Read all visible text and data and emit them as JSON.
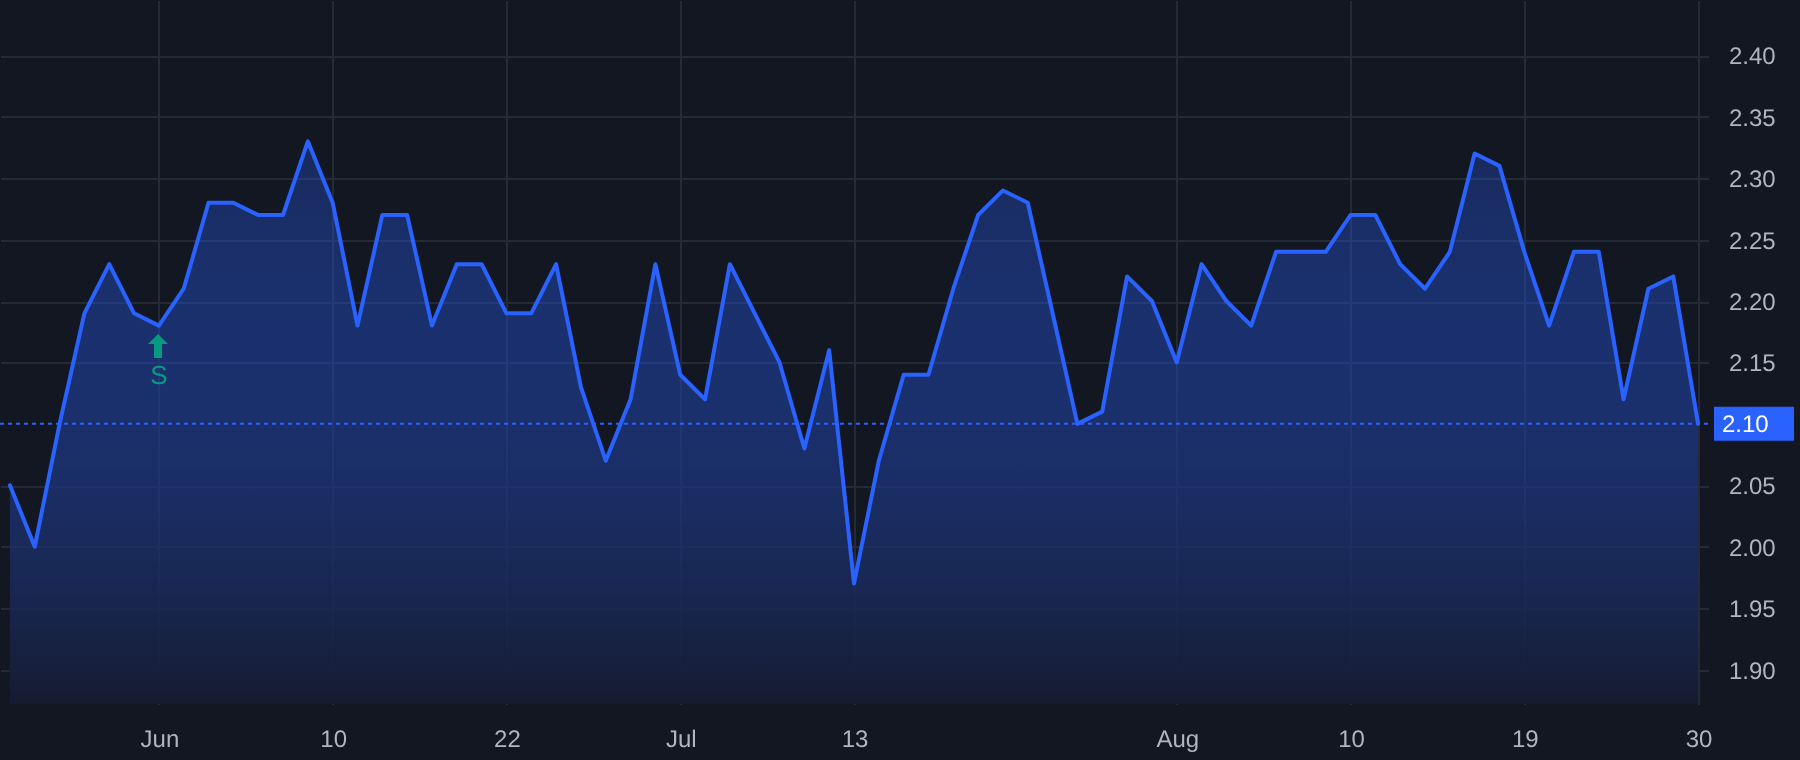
{
  "chart_data": {
    "type": "area",
    "categories": [
      null,
      null,
      null,
      null,
      null,
      null,
      "Jun",
      null,
      null,
      null,
      null,
      null,
      null,
      "10",
      null,
      null,
      null,
      null,
      null,
      null,
      "22",
      null,
      null,
      null,
      null,
      null,
      null,
      "Jul",
      null,
      null,
      null,
      null,
      null,
      null,
      "13",
      null,
      null,
      null,
      null,
      null,
      null,
      null,
      null,
      null,
      null,
      null,
      null,
      "Aug",
      null,
      null,
      null,
      null,
      null,
      null,
      "10",
      null,
      null,
      null,
      null,
      null,
      null,
      "19",
      null,
      null,
      null,
      null,
      null,
      null,
      "30"
    ],
    "series": [
      {
        "color": "#2962ff",
        "values": [
          2.05,
          2.0,
          2.1,
          2.19,
          2.23,
          2.19,
          2.18,
          2.21,
          2.28,
          2.28,
          2.27,
          2.27,
          2.33,
          2.28,
          2.18,
          2.27,
          2.27,
          2.18,
          2.23,
          2.23,
          2.19,
          2.19,
          2.23,
          2.13,
          2.07,
          2.12,
          2.23,
          2.14,
          2.12,
          2.23,
          2.19,
          2.15,
          2.08,
          2.16,
          1.97,
          2.07,
          2.14,
          2.14,
          2.21,
          2.27,
          2.29,
          2.28,
          2.19,
          2.1,
          2.11,
          2.22,
          2.2,
          2.15,
          2.23,
          2.2,
          2.18,
          2.24,
          2.24,
          2.24,
          2.27,
          2.27,
          2.23,
          2.21,
          2.24,
          2.32,
          2.31,
          2.24,
          2.18,
          2.24,
          2.24,
          2.12,
          2.21,
          2.22,
          2.1
        ]
      }
    ],
    "ylim": [
      1.872,
      2.445
    ],
    "yticks": [
      {
        "value": 1.9,
        "label": "1.90"
      },
      {
        "value": 1.95,
        "label": "1.95"
      },
      {
        "value": 2.0,
        "label": "2.00"
      },
      {
        "value": 2.05,
        "label": "2.05"
      },
      {
        "value": 2.15,
        "label": "2.15"
      },
      {
        "value": 2.2,
        "label": "2.20"
      },
      {
        "value": 2.25,
        "label": "2.25"
      },
      {
        "value": 2.3,
        "label": "2.30"
      },
      {
        "value": 2.35,
        "label": "2.35"
      },
      {
        "value": 2.4,
        "label": "2.40"
      }
    ],
    "ref_lines": [
      {
        "axis": "y",
        "value": 2.1,
        "label": "2.10",
        "color": "#2962ff",
        "line_style": "dotted"
      }
    ],
    "annotations": [
      {
        "text": "S",
        "x": "Jun",
        "y": 2.18
      }
    ],
    "grid": true
  }
}
